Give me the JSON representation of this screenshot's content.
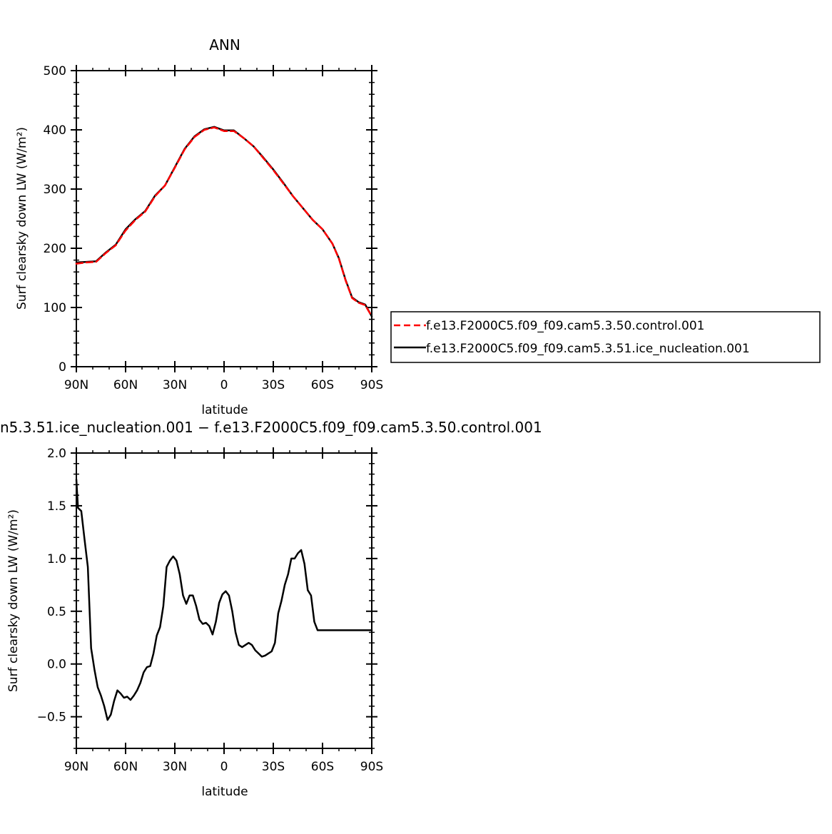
{
  "chart_data": [
    {
      "type": "line",
      "title": "ANN",
      "xlabel": "latitude",
      "ylabel": "Surf clearsky down LW (W/m²)",
      "xlim": [
        90,
        -90
      ],
      "ylim": [
        0,
        500
      ],
      "x_ticks": [
        {
          "value": 90,
          "label": "90N"
        },
        {
          "value": 60,
          "label": "60N"
        },
        {
          "value": 30,
          "label": "30N"
        },
        {
          "value": 0,
          "label": "0"
        },
        {
          "value": -30,
          "label": "30S"
        },
        {
          "value": -60,
          "label": "60S"
        },
        {
          "value": -90,
          "label": "90S"
        }
      ],
      "y_ticks": [
        0,
        100,
        200,
        300,
        400,
        500
      ],
      "y_tick_labels": [
        "0",
        "100",
        "200",
        "300",
        "400",
        "500"
      ],
      "legend": "right",
      "series": [
        {
          "name": "f.e13.F2000C5.f09_f09.cam5.3.50.control.001",
          "color": "#ff0000",
          "dash": "dashed",
          "x": [
            90,
            84,
            78,
            72,
            66,
            60,
            54,
            48,
            42,
            36,
            30,
            24,
            18,
            12,
            6,
            0,
            -6,
            -12,
            -18,
            -24,
            -30,
            -36,
            -42,
            -48,
            -54,
            -60,
            -66,
            -70,
            -74,
            -78,
            -82,
            -86,
            -90
          ],
          "y": [
            174,
            176,
            177,
            192,
            205,
            230,
            248,
            262,
            288,
            306,
            336,
            367,
            388,
            400,
            404,
            398,
            398,
            386,
            372,
            352,
            332,
            310,
            288,
            268,
            248,
            232,
            208,
            182,
            146,
            116,
            108,
            104,
            85
          ]
        },
        {
          "name": "f.e13.F2000C5.f09_f09.cam5.3.51.ice_nucleation.001",
          "color": "#000000",
          "dash": "solid",
          "x": [
            90,
            84,
            78,
            72,
            66,
            60,
            54,
            48,
            42,
            36,
            30,
            24,
            18,
            12,
            6,
            0,
            -6,
            -12,
            -18,
            -24,
            -30,
            -36,
            -42,
            -48,
            -54,
            -60,
            -66,
            -70,
            -74,
            -78,
            -82,
            -86,
            -90
          ],
          "y": [
            176,
            177,
            178,
            193,
            206,
            232,
            249,
            263,
            289,
            306,
            337,
            368,
            389,
            401,
            405,
            399,
            399,
            386,
            372,
            353,
            333,
            311,
            288,
            268,
            248,
            232,
            208,
            183,
            147,
            117,
            109,
            105,
            85
          ]
        }
      ]
    },
    {
      "type": "line",
      "title": "n5.3.51.ice_nucleation.001  −  f.e13.F2000C5.f09_f09.cam5.3.50.control.001",
      "xlabel": "latitude",
      "ylabel": "Surf clearsky down LW (W/m²)",
      "xlim": [
        90,
        -90
      ],
      "ylim": [
        -0.8,
        2.0
      ],
      "x_ticks": [
        {
          "value": 90,
          "label": "90N"
        },
        {
          "value": 60,
          "label": "60N"
        },
        {
          "value": 30,
          "label": "30N"
        },
        {
          "value": 0,
          "label": "0"
        },
        {
          "value": -30,
          "label": "30S"
        },
        {
          "value": -60,
          "label": "60S"
        },
        {
          "value": -90,
          "label": "90S"
        }
      ],
      "y_ticks": [
        -0.5,
        0.0,
        0.5,
        1.0,
        1.5,
        2.0
      ],
      "y_tick_labels": [
        "−0.5",
        "0.0",
        "0.5",
        "1.0",
        "1.5",
        "2.0"
      ],
      "series": [
        {
          "color": "#000000",
          "dash": "solid",
          "x": [
            90,
            89,
            87,
            85,
            83,
            81,
            79,
            77,
            75,
            73,
            71,
            69,
            67,
            65,
            63,
            61,
            59,
            57,
            55,
            53,
            51,
            49,
            47,
            45,
            43,
            41,
            39,
            37,
            35,
            33,
            31,
            29,
            27,
            25,
            23,
            21,
            19,
            17,
            15,
            13,
            11,
            9,
            7,
            5,
            3,
            1,
            -1,
            -3,
            -5,
            -7,
            -9,
            -11,
            -13,
            -15,
            -17,
            -19,
            -21,
            -23,
            -25,
            -27,
            -29,
            -31,
            -33,
            -35,
            -37,
            -39,
            -41,
            -43,
            -45,
            -47,
            -49,
            -51,
            -53,
            -55,
            -57,
            -59,
            -61,
            -63,
            -65,
            -67,
            -69,
            -71,
            -73,
            -75,
            -77,
            -79,
            -81,
            -83,
            -85,
            -87,
            -89,
            -90
          ],
          "y": [
            1.75,
            1.48,
            1.45,
            1.18,
            0.92,
            0.15,
            -0.05,
            -0.22,
            -0.3,
            -0.4,
            -0.53,
            -0.48,
            -0.35,
            -0.25,
            -0.28,
            -0.32,
            -0.31,
            -0.34,
            -0.3,
            -0.25,
            -0.18,
            -0.08,
            -0.03,
            -0.02,
            0.1,
            0.27,
            0.35,
            0.55,
            0.92,
            0.98,
            1.02,
            0.98,
            0.85,
            0.65,
            0.57,
            0.65,
            0.65,
            0.55,
            0.42,
            0.38,
            0.39,
            0.36,
            0.28,
            0.4,
            0.58,
            0.66,
            0.69,
            0.65,
            0.5,
            0.3,
            0.18,
            0.16,
            0.18,
            0.2,
            0.18,
            0.13,
            0.1,
            0.07,
            0.08,
            0.1,
            0.12,
            0.2,
            0.48,
            0.6,
            0.75,
            0.85,
            1.0,
            1.0,
            1.05,
            1.08,
            0.95,
            0.7,
            0.65,
            0.4,
            0.32,
            0.32,
            0.32,
            0.32,
            0.32,
            0.32,
            0.32,
            0.32,
            0.32,
            0.32,
            0.32,
            0.32,
            0.32,
            0.32,
            0.32,
            0.32,
            0.32,
            0.32
          ]
        }
      ]
    }
  ]
}
